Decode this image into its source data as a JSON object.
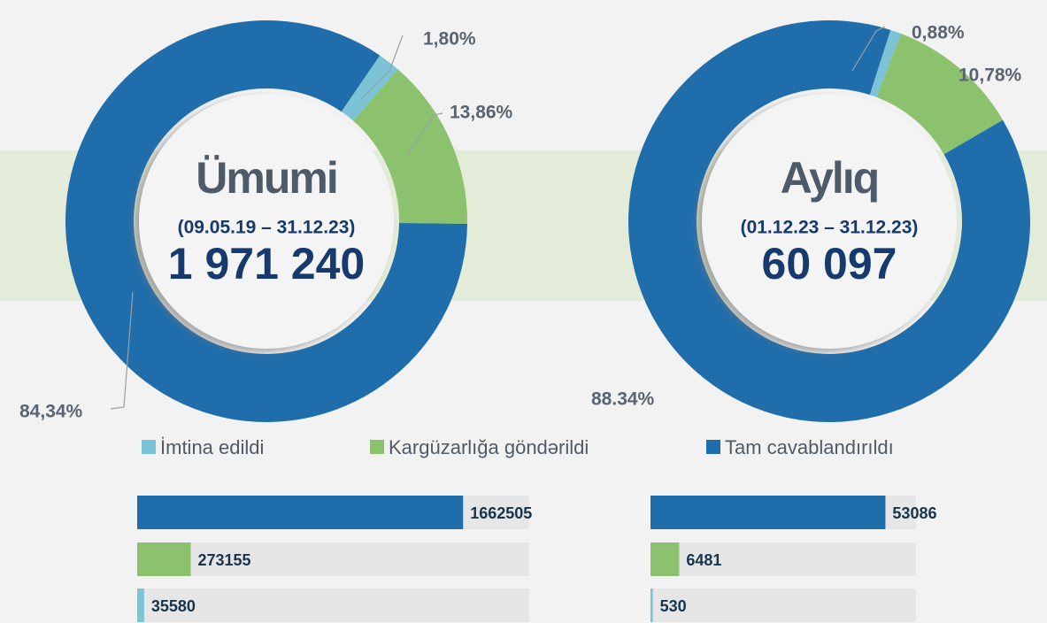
{
  "chart_data": [
    {
      "type": "donut",
      "title": "Ümumi",
      "subtitle": "(09.05.19 – 31.12.23)",
      "total": {
        "value": 1971240,
        "label": "1 971 240"
      },
      "values": [
        1.8,
        13.86,
        84.34
      ],
      "value_labels": [
        "1,80%",
        "13,86%",
        "84,34%"
      ],
      "colors": [
        "#7cc3d6",
        "#8cc26e",
        "#1f6dab"
      ]
    },
    {
      "type": "donut",
      "title": "Aylıq",
      "subtitle": "(01.12.23 – 31.12.23)",
      "total": {
        "value": 60097,
        "label": "60 097"
      },
      "values": [
        0.88,
        10.78,
        88.34
      ],
      "value_labels": [
        "0,88%",
        "10,78%",
        "88.34%"
      ],
      "colors": [
        "#7cc3d6",
        "#8cc26e",
        "#1f6dab"
      ]
    },
    {
      "type": "hbar",
      "values": [
        1662505,
        273155,
        35580
      ],
      "colors": [
        "#1f6dab",
        "#8cc26e",
        "#7cc3d6"
      ],
      "xlim": [
        0,
        2000000
      ]
    },
    {
      "type": "hbar",
      "values": [
        53086,
        6481,
        530
      ],
      "colors": [
        "#1f6dab",
        "#8cc26e",
        "#7cc3d6"
      ],
      "xlim": [
        0,
        60000
      ]
    }
  ],
  "legend": {
    "labels": [
      "İmtina edildi",
      "Kargüzarlığa göndərildi",
      "Tam cavablandırıldı"
    ],
    "colors": [
      "#7cc3d6",
      "#8cc26e",
      "#1f6dab"
    ]
  }
}
